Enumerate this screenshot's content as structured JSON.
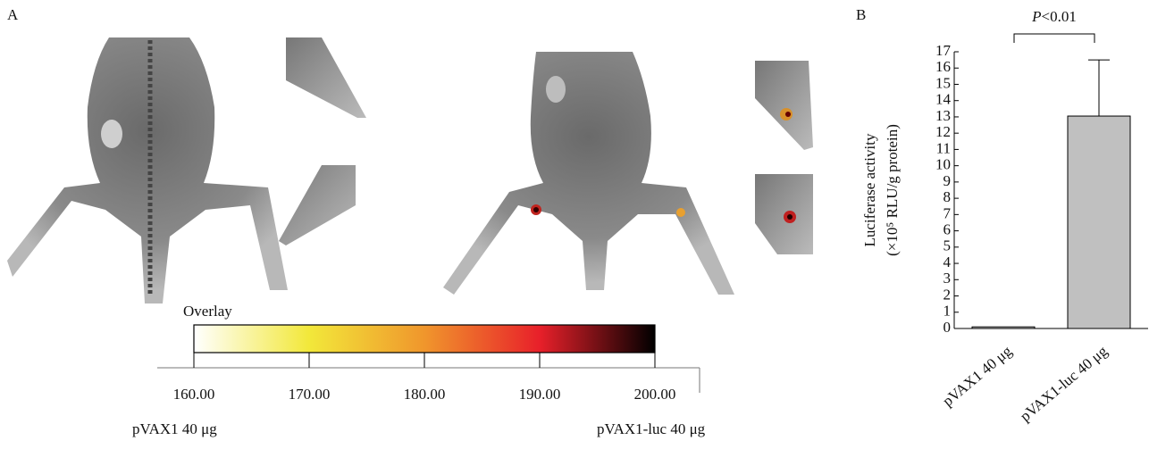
{
  "chart_data": [
    {
      "type": "colorbar",
      "panel": "A",
      "label": "Overlay",
      "colors": [
        "#ffffff",
        "#f2e83a",
        "#f0962c",
        "#e8202a",
        "#000000"
      ],
      "xlim": [
        160,
        200
      ],
      "xticks": [
        {
          "value": 160,
          "label": "160.00"
        },
        {
          "value": 170,
          "label": "170.00"
        },
        {
          "value": 180,
          "label": "180.00"
        },
        {
          "value": 190,
          "label": "190.00"
        },
        {
          "value": 200,
          "label": "200.00"
        }
      ],
      "group_labels": [
        "pVAX1 40 μg",
        "pVAX1-luc 40 μg"
      ]
    },
    {
      "type": "bar",
      "panel": "B",
      "annotation": "P<0.01",
      "y_label": [
        "Luciferase activity",
        "(×10⁵ RLU/g protein)"
      ],
      "categories": [
        "pVAX1 40 μg",
        "pVAX1-luc 40 μg"
      ],
      "values": [
        0.1,
        13.05
      ],
      "errors": [
        0,
        3.45
      ],
      "color": "#c0c0c0",
      "ylim": [
        0,
        17
      ],
      "yticks": [
        0,
        1,
        2,
        3,
        4,
        5,
        6,
        7,
        8,
        9,
        10,
        11,
        12,
        13,
        14,
        15,
        16,
        17
      ]
    }
  ]
}
